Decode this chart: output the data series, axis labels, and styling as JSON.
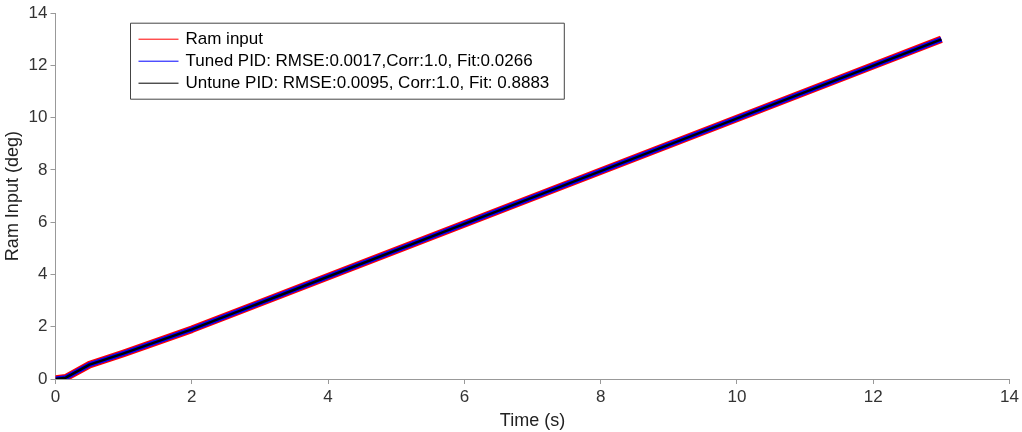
{
  "chart_data": {
    "type": "line",
    "xlabel": "Time (s)",
    "ylabel": "Ram Input (deg)",
    "x": [
      0,
      0.15,
      0.5,
      1,
      2,
      13
    ],
    "series": [
      {
        "name": "Ram input",
        "color": "#ff0000",
        "values": [
          0,
          0.05,
          0.55,
          0.98,
          1.9,
          13
        ]
      },
      {
        "name": "Tuned PID: RMSE:0.0017,Corr:1.0, Fit:0.0266",
        "color": "#0000ff",
        "values": [
          0,
          0.05,
          0.55,
          0.98,
          1.9,
          13
        ]
      },
      {
        "name": "Untune PID: RMSE:0.0095, Corr:1.0, Fit: 0.8883",
        "color": "#000000",
        "values": [
          0,
          0.05,
          0.55,
          0.98,
          1.9,
          13
        ]
      }
    ],
    "xlim": [
      0,
      14
    ],
    "xticks": [
      0,
      2,
      4,
      6,
      8,
      10,
      12,
      14
    ],
    "ylim": [
      0,
      14
    ],
    "yticks": [
      0,
      2,
      4,
      6,
      8,
      10,
      12,
      14
    ],
    "grid": false,
    "legend": "top left",
    "marker": "none",
    "line_style": "solid"
  }
}
